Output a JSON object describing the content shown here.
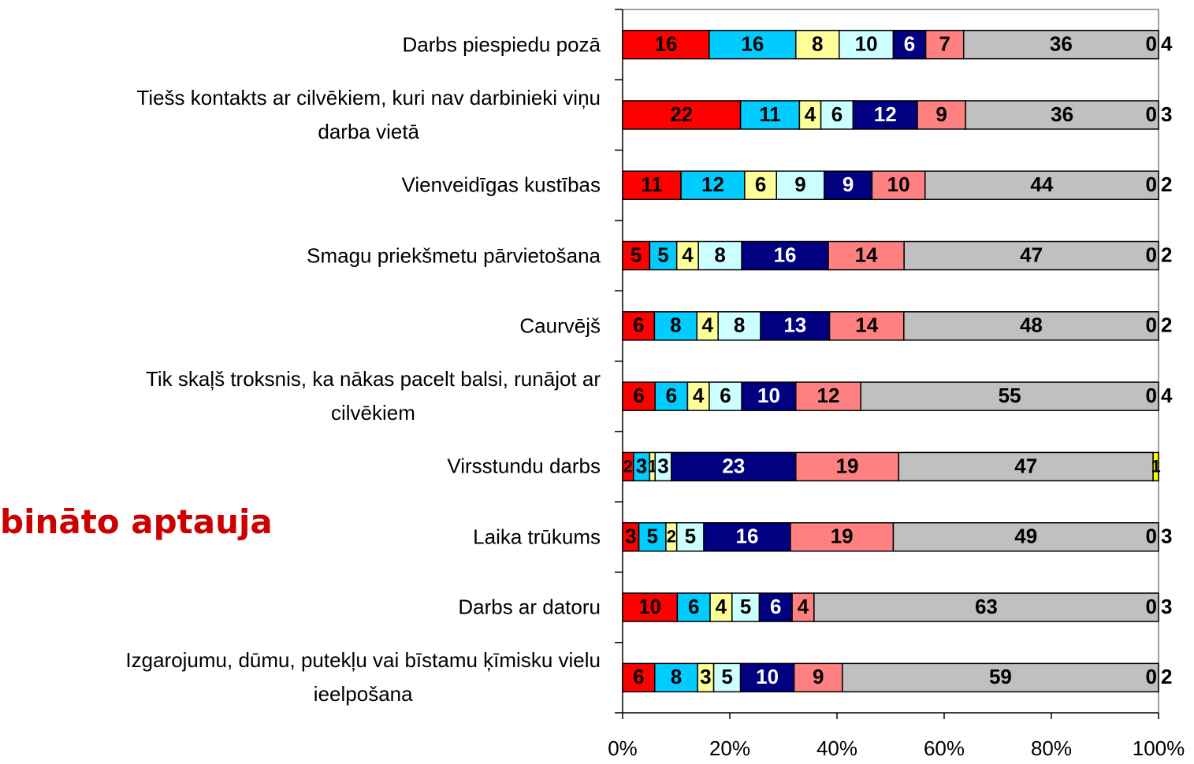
{
  "chart_data": {
    "type": "stacked_bar_horizontal_100",
    "annotation": "bināto aptauja",
    "categories": [
      "Darbs piespiedu pozā",
      "Tiešs kontakts ar cilvēkiem, kuri nav darbinieki viņu\ndarba vietā",
      "Vienveidīgas kustības",
      "Smagu priekšmetu pārvietošana",
      "Caurvējš",
      "Tik skaļš troksnis, ka nākas pacelt balsi, runājot ar\ncilvēkiem",
      "Virsstundu darbs",
      "Laika trūkums",
      "Darbs ar datoru",
      "Izgarojumu, dūmu, putekļu vai bīstamu ķīmisku vielu\nieelpošana"
    ],
    "series": [
      {
        "color": "#ff0000",
        "label_color": "#000000",
        "values": [
          16,
          22,
          11,
          5,
          6,
          6,
          2,
          3,
          10,
          6
        ]
      },
      {
        "color": "#00ccff",
        "label_color": "#000000",
        "values": [
          16,
          11,
          12,
          5,
          8,
          6,
          3,
          5,
          6,
          8
        ]
      },
      {
        "color": "#ffff99",
        "label_color": "#000000",
        "values": [
          8,
          4,
          6,
          4,
          4,
          4,
          1,
          2,
          4,
          3
        ]
      },
      {
        "color": "#ccffff",
        "label_color": "#000000",
        "values": [
          10,
          6,
          9,
          8,
          8,
          6,
          3,
          5,
          5,
          5
        ]
      },
      {
        "color": "#000080",
        "label_color": "#ffffff",
        "values": [
          6,
          12,
          9,
          16,
          13,
          10,
          23,
          16,
          6,
          10
        ]
      },
      {
        "color": "#ff8080",
        "label_color": "#000000",
        "values": [
          7,
          9,
          10,
          14,
          14,
          12,
          19,
          19,
          4,
          9
        ]
      },
      {
        "color": "#c0c0c0",
        "label_color": "#000000",
        "values": [
          36,
          36,
          44,
          47,
          48,
          55,
          47,
          49,
          63,
          59
        ]
      },
      {
        "color": "#ffff00",
        "label_color": "#000000",
        "values": [
          0,
          0,
          0,
          0,
          0,
          0,
          1,
          0,
          0,
          0
        ]
      }
    ],
    "outside_values": [
      4,
      3,
      2,
      2,
      2,
      4,
      null,
      3,
      3,
      2
    ],
    "xlim": [
      0,
      100
    ],
    "xticks": [
      {
        "value": 0,
        "label": "0%"
      },
      {
        "value": 20,
        "label": "20%"
      },
      {
        "value": 40,
        "label": "40%"
      },
      {
        "value": 60,
        "label": "60%"
      },
      {
        "value": 80,
        "label": "80%"
      },
      {
        "value": 100,
        "label": "100%"
      }
    ]
  }
}
